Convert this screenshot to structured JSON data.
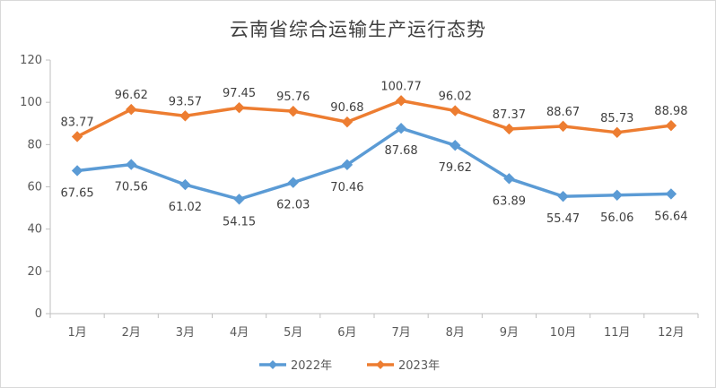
{
  "chart_data": {
    "type": "line",
    "title": "云南省综合运输生产运行态势",
    "categories": [
      "1月",
      "2月",
      "3月",
      "4月",
      "5月",
      "6月",
      "7月",
      "8月",
      "9月",
      "10月",
      "11月",
      "12月"
    ],
    "ylim": [
      0,
      120
    ],
    "yticks": [
      0,
      20,
      40,
      60,
      80,
      100,
      120
    ],
    "grid": false,
    "legend": "bottom",
    "series": [
      {
        "name": "2022年",
        "color": "#5b9bd5",
        "marker": "diamond",
        "values": [
          67.65,
          70.56,
          61.02,
          54.15,
          62.03,
          70.46,
          87.68,
          79.62,
          63.89,
          55.47,
          56.06,
          56.64
        ],
        "labels": [
          "67.65",
          "70.56",
          "61.02",
          "54.15",
          "62.03",
          "70.46",
          "87.68",
          "79.62",
          "63.89",
          "55.47",
          "56.06",
          "56.64"
        ]
      },
      {
        "name": "2023年",
        "color": "#ed7d31",
        "marker": "diamond",
        "values": [
          83.77,
          96.62,
          93.57,
          97.45,
          95.76,
          90.68,
          100.77,
          96.02,
          87.37,
          88.67,
          85.73,
          88.98
        ],
        "labels": [
          "83.77",
          "96.62",
          "93.57",
          "97.45",
          "95.76",
          "90.68",
          "100.77",
          "96.02",
          "87.37",
          "88.67",
          "85.73",
          "88.98"
        ]
      }
    ]
  }
}
